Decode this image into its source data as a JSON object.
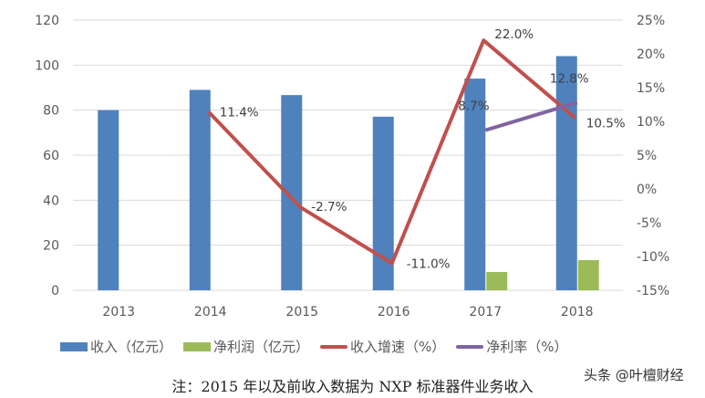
{
  "chart_data": {
    "type": "bar",
    "categories": [
      "2013",
      "2014",
      "2015",
      "2016",
      "2017",
      "2018"
    ],
    "y_left": {
      "range": [
        0,
        120
      ],
      "ticks": [
        0,
        20,
        40,
        60,
        80,
        100,
        120
      ]
    },
    "y_right": {
      "range": [
        -15,
        25
      ],
      "ticks": [
        "-15%",
        "-10%",
        "-5%",
        "0%",
        "5%",
        "10%",
        "15%",
        "20%",
        "25%"
      ],
      "tick_values": [
        -15,
        -10,
        -5,
        0,
        5,
        10,
        15,
        20,
        25
      ]
    },
    "grid": true,
    "legend_position": "bottom",
    "series": [
      {
        "name": "收入（亿元）",
        "kind": "bar",
        "axis": "left",
        "color": "#4f81bd",
        "values": [
          80,
          89,
          86.7,
          77.1,
          94,
          104
        ]
      },
      {
        "name": "净利润（亿元）",
        "kind": "bar",
        "axis": "left",
        "color": "#9bbb59",
        "values": [
          null,
          null,
          null,
          null,
          8.1,
          13.4
        ]
      },
      {
        "name": "收入增速（%）",
        "kind": "line",
        "axis": "right",
        "color": "#c0504d",
        "values": [
          null,
          11.4,
          -2.7,
          -11.0,
          22.0,
          10.5
        ],
        "labels": [
          null,
          "11.4%",
          "-2.7%",
          "-11.0%",
          "22.0%",
          "10.5%"
        ]
      },
      {
        "name": "净利率（%）",
        "kind": "line",
        "axis": "right",
        "color": "#8064a2",
        "values": [
          null,
          null,
          null,
          null,
          8.7,
          12.8
        ],
        "labels": [
          null,
          null,
          null,
          null,
          "8.7%",
          "12.8%"
        ]
      }
    ]
  },
  "note": "注：2015 年以及前收入数据为 NXP 标准器件业务收入",
  "watermark": "头条 @叶檀财经"
}
